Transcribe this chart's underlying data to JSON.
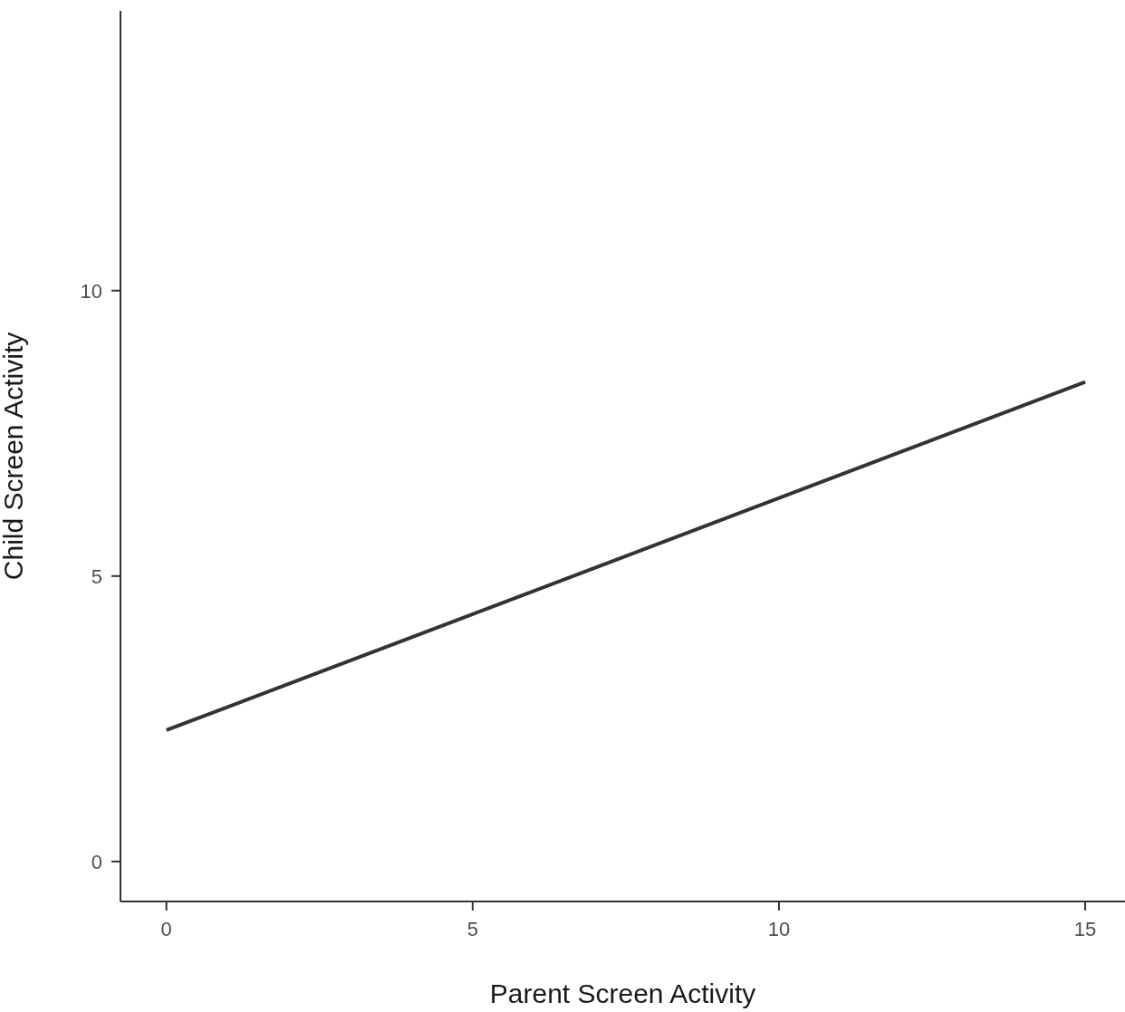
{
  "chart_data": {
    "type": "line",
    "xlabel": "Parent Screen Activity",
    "ylabel": "Child Screen Activity",
    "x": [
      0,
      15
    ],
    "series": [
      {
        "color": "#333333",
        "values": [
          2.3,
          8.4
        ]
      }
    ],
    "xlim": [
      -0.75,
      15.65
    ],
    "ylim": [
      -0.7,
      14.9
    ],
    "xticks": [
      0,
      5,
      10,
      15
    ],
    "yticks": [
      0,
      5,
      10
    ],
    "line_style": "solid"
  }
}
